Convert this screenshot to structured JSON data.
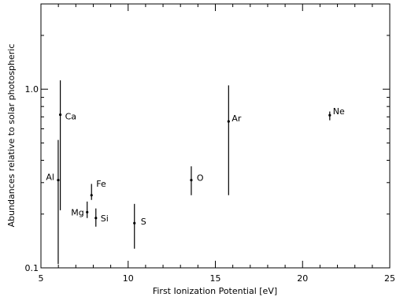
{
  "chart_data": {
    "type": "scatter",
    "title": "",
    "xlabel": "First Ionization Potential [eV]",
    "ylabel": "Abundances relative to solar photospheric",
    "xlim": [
      5,
      25
    ],
    "ylim": [
      0.1,
      3.0
    ],
    "yscale": "log",
    "xticks": [
      5,
      10,
      15,
      20,
      25
    ],
    "xtick_labels": [
      "5",
      "10",
      "15",
      "20",
      "25"
    ],
    "yticks": [
      0.1,
      1.0
    ],
    "ytick_labels": [
      "0.1",
      "1.0"
    ],
    "grid": false,
    "points": [
      {
        "name": "Al",
        "x": 5.99,
        "y": 0.31,
        "ylow": 0.105,
        "yhigh": 0.52
      },
      {
        "name": "Ca",
        "x": 6.11,
        "y": 0.72,
        "ylow": 0.21,
        "yhigh": 1.12
      },
      {
        "name": "Fe",
        "x": 7.9,
        "y": 0.255,
        "ylow": 0.24,
        "yhigh": 0.295
      },
      {
        "name": "Mg",
        "x": 7.65,
        "y": 0.205,
        "ylow": 0.19,
        "yhigh": 0.235
      },
      {
        "name": "Si",
        "x": 8.15,
        "y": 0.19,
        "ylow": 0.17,
        "yhigh": 0.215
      },
      {
        "name": "S",
        "x": 10.36,
        "y": 0.178,
        "ylow": 0.128,
        "yhigh": 0.228
      },
      {
        "name": "O",
        "x": 13.62,
        "y": 0.31,
        "ylow": 0.255,
        "yhigh": 0.37
      },
      {
        "name": "Ar",
        "x": 15.76,
        "y": 0.66,
        "ylow": 0.255,
        "yhigh": 1.05
      },
      {
        "name": "Ne",
        "x": 21.56,
        "y": 0.715,
        "ylow": 0.67,
        "yhigh": 0.75
      }
    ]
  }
}
